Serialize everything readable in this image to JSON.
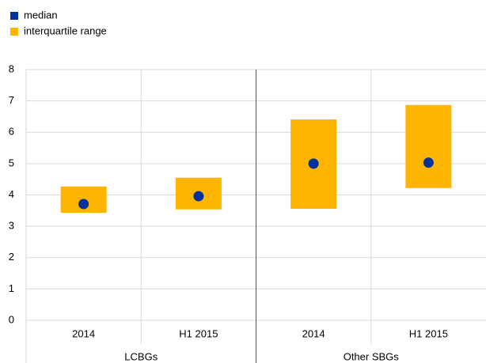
{
  "chart_data": {
    "type": "range",
    "categories": [
      "2014",
      "H1 2015",
      "2014",
      "H1 2015"
    ],
    "groups": [
      "LCBGs",
      "Other SBGs"
    ],
    "series": [
      {
        "name": "median",
        "color": "#003299",
        "values": [
          3.71,
          3.96,
          5.0,
          5.03
        ]
      },
      {
        "name": "interquartile range",
        "color": "#ffb400",
        "low": [
          3.43,
          3.54,
          3.56,
          4.22
        ],
        "high": [
          4.27,
          4.55,
          6.41,
          6.87
        ]
      }
    ],
    "ylim": [
      0,
      8
    ],
    "yticks": [
      0,
      1,
      2,
      3,
      4,
      5,
      6,
      7,
      8
    ],
    "grid": true
  }
}
